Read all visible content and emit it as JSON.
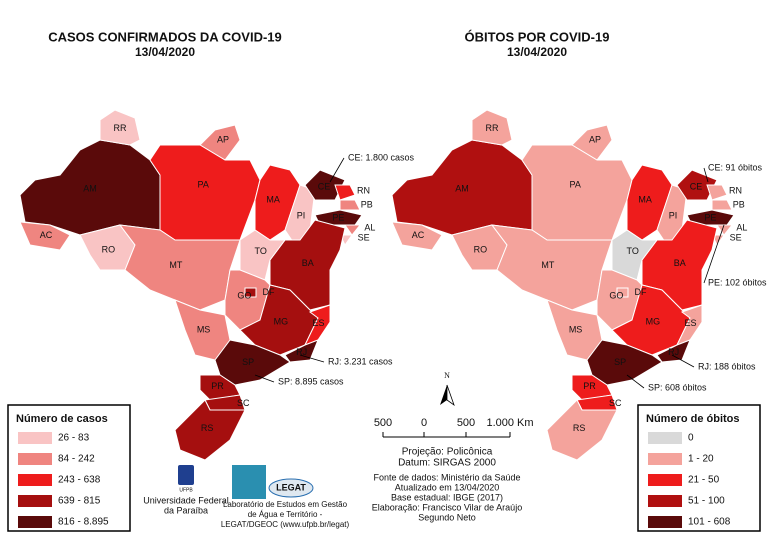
{
  "maps": [
    {
      "title": "CASOS CONFIRMADOS DA COVID-19",
      "date": "13/04/2020",
      "states": [
        {
          "label": "AM",
          "color": "#5a0a0a"
        },
        {
          "label": "RR",
          "color": "#f9c4c4"
        },
        {
          "label": "AP",
          "color": "#ef8580"
        },
        {
          "label": "PA",
          "color": "#ee1c1c"
        },
        {
          "label": "AC",
          "color": "#ef8580"
        },
        {
          "label": "RO",
          "color": "#f9c4c4"
        },
        {
          "label": "MT",
          "color": "#ef8580"
        },
        {
          "label": "MA",
          "color": "#ee1c1c"
        },
        {
          "label": "PI",
          "color": "#f9c4c4"
        },
        {
          "label": "CE",
          "color": "#5a0a0a"
        },
        {
          "label": "RN",
          "color": "#ee1c1c"
        },
        {
          "label": "PB",
          "color": "#ef8580"
        },
        {
          "label": "PE",
          "color": "#5a0a0a"
        },
        {
          "label": "AL",
          "color": "#ef8580"
        },
        {
          "label": "SE",
          "color": "#f9c4c4"
        },
        {
          "label": "BA",
          "color": "#a50f0f"
        },
        {
          "label": "TO",
          "color": "#f9c4c4"
        },
        {
          "label": "GO",
          "color": "#ef8580"
        },
        {
          "label": "DF",
          "color": "#a50f0f"
        },
        {
          "label": "MS",
          "color": "#ef8580"
        },
        {
          "label": "MG",
          "color": "#a50f0f"
        },
        {
          "label": "ES",
          "color": "#ee1c1c"
        },
        {
          "label": "RJ",
          "color": "#5a0a0a"
        },
        {
          "label": "SP",
          "color": "#5a0a0a"
        },
        {
          "label": "PR",
          "color": "#a50f0f"
        },
        {
          "label": "SC",
          "color": "#a50f0f"
        },
        {
          "label": "RS",
          "color": "#a50f0f"
        }
      ],
      "annotations": [
        "CE: 1.800 casos",
        "RJ: 3.231 casos",
        "SP: 8.895 casos"
      ],
      "legend": {
        "title": "Número de casos",
        "items": [
          {
            "label": "26 - 83",
            "color": "#f9c4c4"
          },
          {
            "label": "84 - 242",
            "color": "#ef8580"
          },
          {
            "label": "243 - 638",
            "color": "#ee1c1c"
          },
          {
            "label": "639 - 815",
            "color": "#a50f0f"
          },
          {
            "label": "816 - 8.895",
            "color": "#5a0a0a"
          }
        ]
      }
    },
    {
      "title": "ÓBITOS POR COVID-19",
      "date": "13/04/2020",
      "states": [
        {
          "label": "AM",
          "color": "#b01010"
        },
        {
          "label": "RR",
          "color": "#f4a39c"
        },
        {
          "label": "AP",
          "color": "#f4a39c"
        },
        {
          "label": "PA",
          "color": "#f4a39c"
        },
        {
          "label": "AC",
          "color": "#f4a39c"
        },
        {
          "label": "RO",
          "color": "#f4a39c"
        },
        {
          "label": "MT",
          "color": "#f4a39c"
        },
        {
          "label": "MA",
          "color": "#ee1c1c"
        },
        {
          "label": "PI",
          "color": "#f4a39c"
        },
        {
          "label": "CE",
          "color": "#b01010"
        },
        {
          "label": "RN",
          "color": "#f4a39c"
        },
        {
          "label": "PB",
          "color": "#f4a39c"
        },
        {
          "label": "PE",
          "color": "#5a0a0a"
        },
        {
          "label": "AL",
          "color": "#f4a39c"
        },
        {
          "label": "SE",
          "color": "#f4a39c"
        },
        {
          "label": "BA",
          "color": "#ee1c1c"
        },
        {
          "label": "TO",
          "color": "#d9d9d9"
        },
        {
          "label": "GO",
          "color": "#f4a39c"
        },
        {
          "label": "DF",
          "color": "#f4a39c"
        },
        {
          "label": "MS",
          "color": "#f4a39c"
        },
        {
          "label": "MG",
          "color": "#ee1c1c"
        },
        {
          "label": "ES",
          "color": "#f4a39c"
        },
        {
          "label": "RJ",
          "color": "#5a0a0a"
        },
        {
          "label": "SP",
          "color": "#5a0a0a"
        },
        {
          "label": "PR",
          "color": "#ee1c1c"
        },
        {
          "label": "SC",
          "color": "#ee1c1c"
        },
        {
          "label": "RS",
          "color": "#f4a39c"
        }
      ],
      "annotations": [
        "CE: 91 óbitos",
        "PE: 102 óbitos",
        "RJ: 188 óbitos",
        "SP: 608 óbitos"
      ],
      "legend": {
        "title": "Número de óbitos",
        "items": [
          {
            "label": "0",
            "color": "#d9d9d9"
          },
          {
            "label": "1 - 20",
            "color": "#f4a39c"
          },
          {
            "label": "21 - 50",
            "color": "#ee1c1c"
          },
          {
            "label": "51 - 100",
            "color": "#b01010"
          },
          {
            "label": "101 - 608",
            "color": "#5a0a0a"
          }
        ]
      }
    }
  ],
  "north": "N",
  "scale": [
    "500",
    "0",
    "500",
    "1.000 Km"
  ],
  "projection": [
    "Projeção: Policônica",
    "Datum: SIRGAS 2000"
  ],
  "source": [
    "Fonte de dados: Ministério da Saúde",
    "Atualizado em 13/04/2020",
    "Base estadual: IBGE (2017)",
    "Elaboração: Francisco Vilar de Araújo",
    "Segundo Neto"
  ],
  "logos": {
    "ufpb": "UFPB",
    "ufpb_name": [
      "Universidade Federal",
      "da Paraíba"
    ],
    "legat": "LEGAT",
    "legat_name": [
      "Laboratório de Estudos em Gestão",
      "de Água e Território -",
      "LEGAT/DGEOC (www.ufpb.br/legat)"
    ]
  }
}
